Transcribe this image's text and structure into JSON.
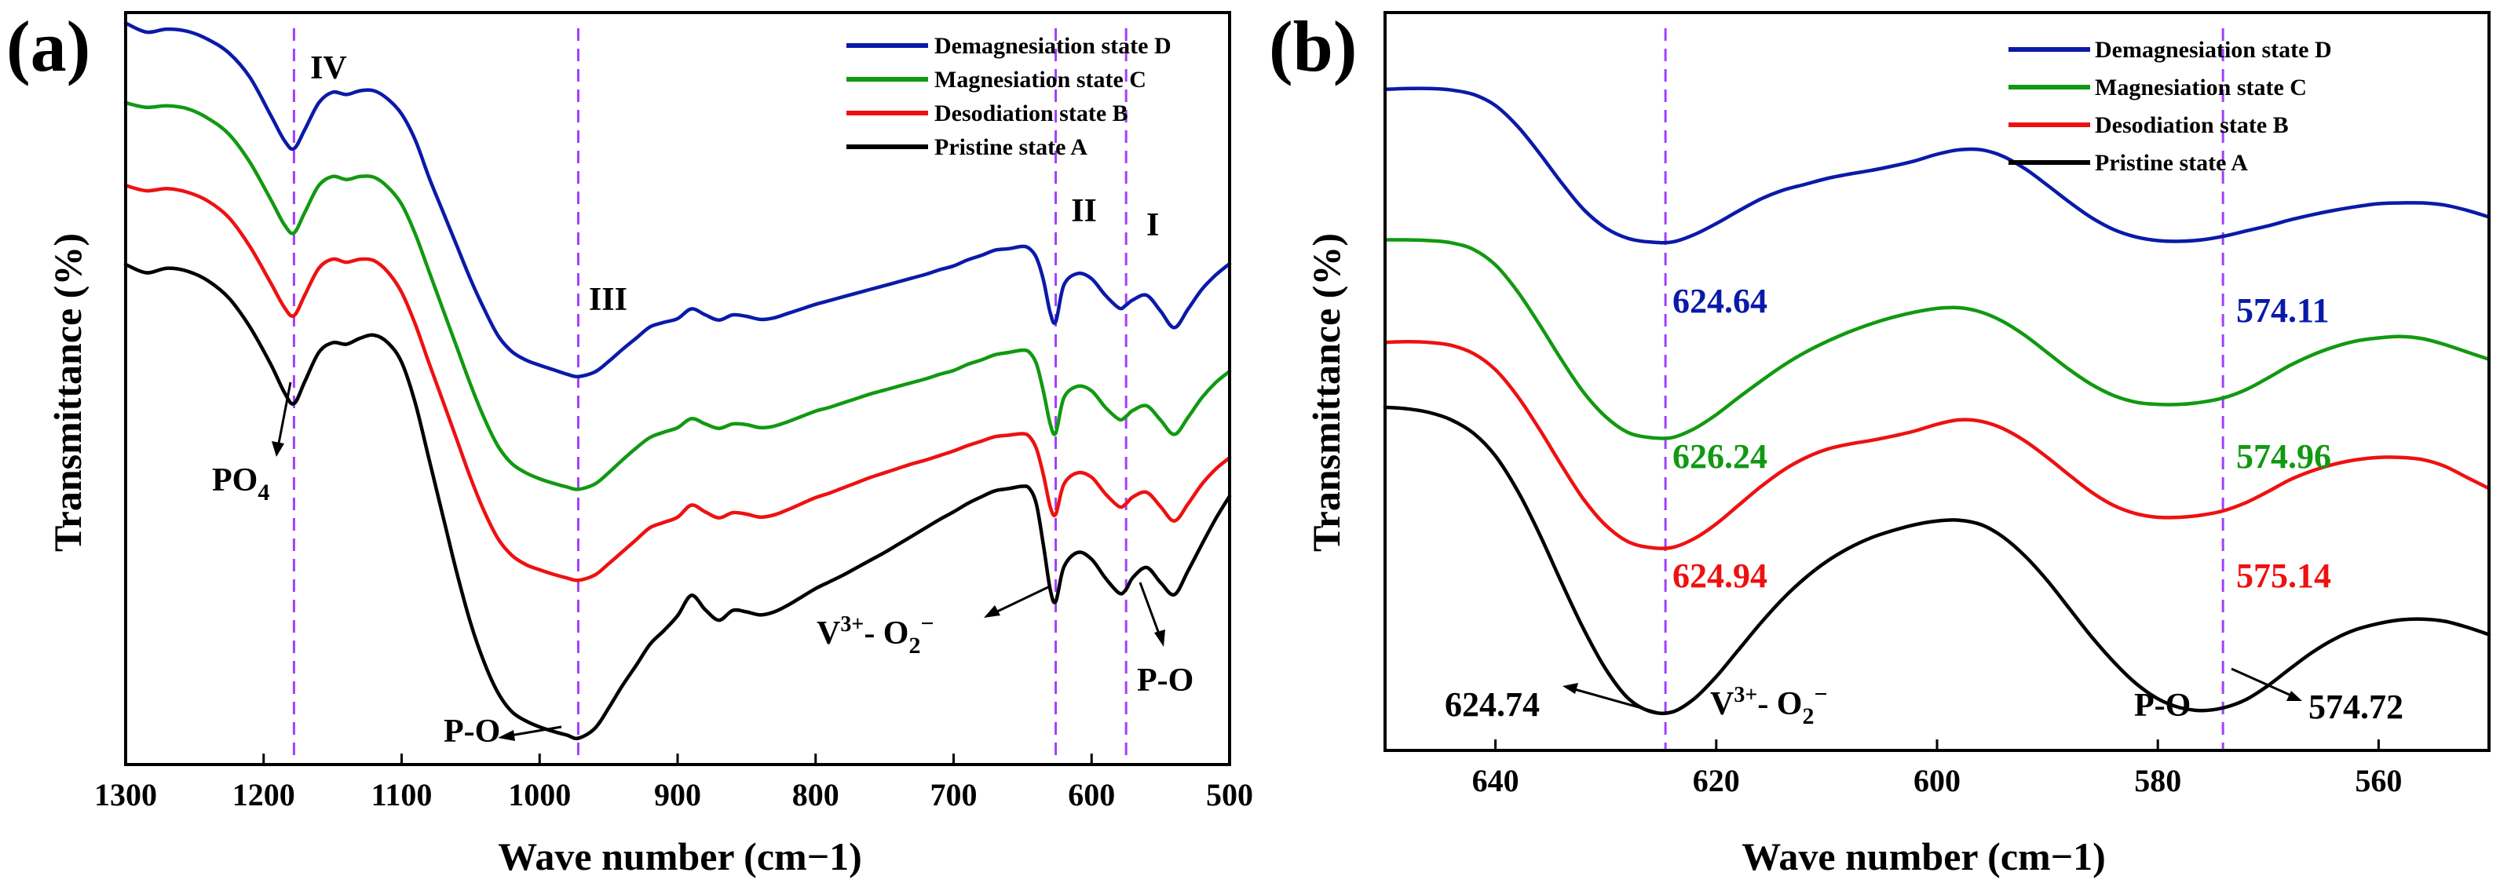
{
  "chart_data": [
    {
      "panel": "(a)",
      "type": "line",
      "xlabel": "Wave number (cm−1)",
      "ylabel": "Transmittance (%)",
      "xlim": [
        1300,
        500
      ],
      "xticks": [
        1300,
        1200,
        1100,
        1000,
        900,
        800,
        700,
        600,
        500
      ],
      "y_units": "arbitrary (offset traces)",
      "ylim": [
        0,
        100
      ],
      "legend": "top-right",
      "x": [
        1300,
        1285,
        1270,
        1255,
        1240,
        1225,
        1210,
        1195,
        1185,
        1178,
        1170,
        1160,
        1150,
        1140,
        1130,
        1120,
        1110,
        1100,
        1090,
        1080,
        1070,
        1060,
        1050,
        1040,
        1030,
        1020,
        1010,
        1000,
        990,
        980,
        972,
        960,
        950,
        940,
        930,
        920,
        910,
        900,
        890,
        880,
        870,
        860,
        850,
        840,
        830,
        820,
        810,
        800,
        790,
        780,
        770,
        760,
        750,
        740,
        730,
        720,
        710,
        700,
        690,
        680,
        670,
        660,
        650,
        645,
        640,
        635,
        630,
        626,
        620,
        610,
        600,
        590,
        580,
        575,
        570,
        560,
        550,
        540,
        530,
        520,
        510,
        500
      ],
      "series": [
        {
          "name": "Demagnesiation state D",
          "color": "#0a1aa8",
          "values": [
            98.6,
            97.4,
            97.8,
            97.5,
            96.4,
            94.6,
            91.4,
            86.4,
            83.0,
            81.9,
            84.5,
            88.0,
            89.4,
            89.1,
            89.6,
            89.6,
            88.5,
            86.5,
            83.0,
            78.0,
            73.5,
            69.0,
            64.5,
            60.5,
            57.0,
            54.9,
            53.8,
            53.1,
            52.5,
            51.9,
            51.6,
            52.2,
            53.6,
            55.2,
            56.7,
            58.2,
            58.8,
            59.3,
            60.6,
            59.8,
            59.1,
            59.8,
            59.6,
            59.2,
            59.4,
            60.0,
            60.6,
            61.2,
            61.7,
            62.2,
            62.7,
            63.2,
            63.7,
            64.2,
            64.7,
            65.2,
            65.8,
            66.3,
            67.1,
            67.7,
            68.4,
            68.6,
            68.9,
            68.6,
            67.4,
            64.5,
            60.1,
            58.9,
            63.8,
            65.3,
            64.6,
            62.4,
            60.7,
            61.1,
            61.8,
            62.4,
            60.3,
            58.1,
            60.6,
            63.2,
            65.1,
            66.6
          ]
        },
        {
          "name": "Magnesiation state C",
          "color": "#119911",
          "values": [
            88.0,
            87.4,
            87.6,
            87.2,
            85.9,
            83.8,
            80.1,
            75.2,
            71.8,
            70.7,
            73.5,
            77.0,
            78.2,
            77.8,
            78.2,
            78.1,
            76.8,
            74.5,
            70.5,
            65.5,
            60.5,
            55.5,
            50.5,
            46.0,
            42.3,
            40.0,
            38.8,
            38.0,
            37.4,
            36.9,
            36.6,
            37.3,
            38.8,
            40.5,
            42.1,
            43.5,
            44.2,
            44.8,
            46.0,
            45.3,
            44.7,
            45.3,
            45.2,
            44.8,
            45.0,
            45.6,
            46.3,
            47.0,
            47.5,
            48.1,
            48.7,
            49.3,
            49.8,
            50.3,
            50.8,
            51.3,
            51.9,
            52.4,
            53.2,
            53.8,
            54.5,
            54.8,
            55.1,
            54.8,
            53.3,
            49.7,
            45.3,
            44.1,
            48.8,
            50.3,
            49.7,
            47.5,
            45.9,
            46.3,
            47.1,
            47.7,
            45.8,
            43.9,
            46.2,
            48.8,
            50.8,
            52.3
          ]
        },
        {
          "name": "Desodiation state B",
          "color": "#ee1111",
          "values": [
            77.0,
            76.3,
            76.6,
            76.1,
            74.9,
            72.7,
            68.9,
            64.1,
            60.8,
            59.7,
            62.5,
            66.0,
            67.2,
            66.8,
            67.2,
            67.0,
            65.5,
            62.8,
            58.5,
            53.3,
            48.3,
            43.2,
            38.1,
            33.6,
            30.0,
            27.8,
            26.6,
            25.9,
            25.3,
            24.8,
            24.5,
            25.2,
            26.7,
            28.3,
            29.9,
            31.5,
            32.2,
            32.9,
            34.5,
            33.6,
            32.8,
            33.5,
            33.3,
            32.9,
            33.2,
            33.9,
            34.7,
            35.5,
            36.1,
            36.8,
            37.5,
            38.2,
            38.8,
            39.4,
            40.0,
            40.5,
            41.1,
            41.7,
            42.4,
            43.0,
            43.6,
            43.8,
            44.0,
            43.6,
            42.0,
            38.6,
            34.3,
            33.3,
            37.3,
            38.8,
            38.2,
            36.0,
            34.3,
            34.7,
            35.6,
            36.2,
            34.3,
            32.4,
            34.7,
            37.3,
            39.3,
            40.8
          ]
        },
        {
          "name": "Pristine state A",
          "color": "#000000",
          "values": [
            66.5,
            65.4,
            66.0,
            65.6,
            64.3,
            62.0,
            58.2,
            53.3,
            49.5,
            48.0,
            51.0,
            54.8,
            56.1,
            55.9,
            56.7,
            57.1,
            56.1,
            53.5,
            48.0,
            40.5,
            33.0,
            25.5,
            18.8,
            13.5,
            9.5,
            7.0,
            5.8,
            5.0,
            4.4,
            3.9,
            3.5,
            4.8,
            7.5,
            10.5,
            13.2,
            16.0,
            17.8,
            19.8,
            22.5,
            20.6,
            19.2,
            20.5,
            20.3,
            19.9,
            20.3,
            21.2,
            22.3,
            23.4,
            24.3,
            25.2,
            26.2,
            27.2,
            28.2,
            29.3,
            30.4,
            31.5,
            32.6,
            33.6,
            34.7,
            35.6,
            36.4,
            36.7,
            37.0,
            36.7,
            34.6,
            29.3,
            23.3,
            21.7,
            26.3,
            28.2,
            27.3,
            24.8,
            22.8,
            23.3,
            24.9,
            26.2,
            24.2,
            22.6,
            25.8,
            29.3,
            32.7,
            35.7
          ]
        }
      ],
      "vertical_markers": [
        1178,
        972,
        626,
        575
      ],
      "roman_labels": [
        "IV",
        "III",
        "II",
        "I"
      ],
      "annotations": {
        "po4": "PO",
        "po4_sub": "4",
        "po_low": "P-O",
        "v3": "V",
        "v3_sup": "3+",
        "v3_mid": "- O",
        "v3_sub": "2",
        "v3_sup2": "−",
        "po_right": "P-O"
      }
    },
    {
      "panel": "(b)",
      "type": "line",
      "xlabel": "Wave number (cm−1)",
      "ylabel": "Transmittance (%)",
      "xlim": [
        650,
        550
      ],
      "xticks": [
        640,
        620,
        600,
        580,
        560
      ],
      "y_units": "arbitrary (offset traces)",
      "ylim": [
        0,
        100
      ],
      "legend": "top-right",
      "x": [
        650,
        648,
        646,
        644,
        642,
        640,
        638,
        636,
        634,
        632,
        630,
        628,
        626,
        624,
        622,
        620,
        618,
        616,
        614,
        612,
        610,
        608,
        606,
        604,
        602,
        600,
        598,
        596,
        594,
        592,
        590,
        588,
        586,
        584,
        582,
        580,
        578,
        576,
        574,
        572,
        570,
        568,
        566,
        564,
        562,
        560,
        558,
        556,
        554,
        552,
        550
      ],
      "series": [
        {
          "name": "Demagnesiation state D",
          "color": "#0a1aa8",
          "values": [
            89.6,
            89.7,
            89.7,
            89.5,
            88.9,
            87.4,
            84.6,
            80.9,
            76.9,
            73.3,
            70.8,
            69.4,
            68.9,
            68.9,
            69.9,
            71.4,
            73.1,
            74.7,
            75.9,
            76.7,
            77.5,
            78.1,
            78.6,
            79.2,
            79.9,
            80.8,
            81.4,
            81.4,
            80.5,
            78.8,
            76.6,
            74.3,
            72.2,
            70.6,
            69.6,
            69.1,
            69.0,
            69.2,
            69.7,
            70.4,
            71.1,
            71.9,
            72.6,
            73.2,
            73.7,
            74.1,
            74.2,
            74.2,
            73.9,
            73.2,
            72.3
          ]
        },
        {
          "name": "Magnesiation state C",
          "color": "#119911",
          "values": [
            69.2,
            69.2,
            69.1,
            68.8,
            67.9,
            65.8,
            62.2,
            57.7,
            52.9,
            48.5,
            45.2,
            43.1,
            42.4,
            42.4,
            43.6,
            45.5,
            47.8,
            50.0,
            52.1,
            53.9,
            55.4,
            56.7,
            57.8,
            58.7,
            59.4,
            59.9,
            60.0,
            59.4,
            58.1,
            56.2,
            53.9,
            51.6,
            49.6,
            48.1,
            47.2,
            46.9,
            46.9,
            47.2,
            47.8,
            48.9,
            50.5,
            52.2,
            53.6,
            54.7,
            55.5,
            55.9,
            56.1,
            55.8,
            55.0,
            54.0,
            53.0
          ]
        },
        {
          "name": "Desodiation state B",
          "color": "#ee1111",
          "values": [
            55.3,
            55.4,
            55.3,
            54.9,
            53.8,
            51.6,
            48.0,
            43.5,
            38.6,
            34.0,
            30.5,
            28.3,
            27.5,
            27.5,
            28.7,
            30.7,
            33.2,
            35.7,
            37.9,
            39.6,
            40.8,
            41.5,
            42.0,
            42.6,
            43.3,
            44.2,
            44.8,
            44.6,
            43.6,
            41.9,
            39.7,
            37.3,
            35.0,
            33.2,
            32.1,
            31.6,
            31.6,
            31.9,
            32.5,
            33.6,
            35.1,
            36.7,
            37.9,
            38.8,
            39.4,
            39.7,
            39.7,
            39.4,
            38.5,
            37.0,
            35.5
          ]
        },
        {
          "name": "Pristine state A",
          "color": "#000000",
          "values": [
            46.5,
            46.3,
            45.8,
            44.8,
            43.0,
            39.9,
            35.2,
            29.3,
            22.7,
            16.4,
            11.0,
            7.1,
            5.3,
            5.2,
            7.0,
            10.0,
            13.6,
            17.2,
            20.5,
            23.3,
            25.6,
            27.4,
            28.8,
            29.8,
            30.6,
            31.1,
            31.2,
            30.6,
            28.9,
            26.3,
            23.0,
            19.2,
            15.4,
            12.0,
            9.1,
            7.0,
            5.8,
            5.4,
            5.8,
            6.9,
            8.8,
            11.1,
            13.3,
            15.1,
            16.4,
            17.2,
            17.7,
            17.8,
            17.5,
            16.7,
            15.7
          ]
        }
      ],
      "vertical_markers": [
        624.6,
        574.1
      ],
      "peak_labels_left": [
        {
          "text": "624.64",
          "color": "#0a1aa8"
        },
        {
          "text": "626.24",
          "color": "#119911"
        },
        {
          "text": "624.94",
          "color": "#ee1111"
        },
        {
          "text": "624.74",
          "color": "#000000"
        }
      ],
      "peak_labels_right": [
        {
          "text": "574.11",
          "color": "#0a1aa8"
        },
        {
          "text": "574.96",
          "color": "#119911"
        },
        {
          "text": "575.14",
          "color": "#ee1111"
        },
        {
          "text": "574.72",
          "color": "#000000"
        }
      ],
      "annotations": {
        "v3": "V",
        "v3_sup": "3+",
        "v3_mid": "- O",
        "v3_sub": "2",
        "v3_sup2": "−",
        "po": "P-O"
      }
    }
  ]
}
